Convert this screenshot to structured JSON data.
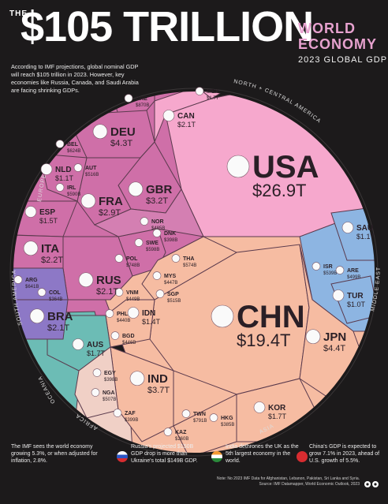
{
  "header": {
    "the": "THE",
    "title": "$105 TRILLION",
    "right_title_1": "WORLD",
    "right_title_2": "ECONOMY",
    "subtitle": "2023 GLOBAL GDP",
    "intro": "According to IMF projections, global nominal GDP will reach $105 trillion in 2023. However, key economies like Russia, Canada, and Saudi Arabia are facing shrinking GDPs."
  },
  "colors": {
    "background": "#1c1a1b",
    "north_america": "#f6a8cd",
    "asia": "#f6bca2",
    "europe": "#cf6fa8",
    "middle_east": "#8db5e2",
    "south_america": "#8d78c6",
    "oceania": "#6cbcb5",
    "africa": "#f0d0c6",
    "title_accent": "#e7a2cf"
  },
  "chart_data": {
    "type": "voronoi treemap",
    "unit": "USD",
    "regions": [
      {
        "name": "NORTH + CENTRAL AMERICA",
        "countries": [
          {
            "code": "USA",
            "value": "$26.9T"
          },
          {
            "code": "CAN",
            "value": "$2.1T"
          },
          {
            "code": "MEX",
            "value": "$1.7T"
          }
        ]
      },
      {
        "name": "ASIA",
        "countries": [
          {
            "code": "CHN",
            "value": "$19.4T"
          },
          {
            "code": "JPN",
            "value": "$4.4T"
          },
          {
            "code": "IND",
            "value": "$3.7T"
          },
          {
            "code": "KOR",
            "value": "$1.7T"
          },
          {
            "code": "IDN",
            "value": "$1.4T"
          },
          {
            "code": "TWN",
            "value": "$791B"
          },
          {
            "code": "THA",
            "value": "$574B"
          },
          {
            "code": "SGP",
            "value": "$515B"
          },
          {
            "code": "PHL",
            "value": "$440B"
          },
          {
            "code": "VNM",
            "value": "$449B"
          },
          {
            "code": "MYS",
            "value": "$447B"
          },
          {
            "code": "BGD",
            "value": "$446B"
          },
          {
            "code": "HKG",
            "value": "$385B"
          },
          {
            "code": "KAZ",
            "value": "$260B"
          }
        ]
      },
      {
        "name": "EUROPE",
        "countries": [
          {
            "code": "DEU",
            "value": "$4.3T"
          },
          {
            "code": "GBR",
            "value": "$3.2T"
          },
          {
            "code": "FRA",
            "value": "$2.9T"
          },
          {
            "code": "ITA",
            "value": "$2.2T"
          },
          {
            "code": "RUS",
            "value": "$2.1T"
          },
          {
            "code": "ESP",
            "value": "$1.5T"
          },
          {
            "code": "NLD",
            "value": "$1.1T"
          },
          {
            "code": "CHE",
            "value": "$870B"
          },
          {
            "code": "POL",
            "value": "$748B"
          },
          {
            "code": "BEL",
            "value": "$624B"
          },
          {
            "code": "SWE",
            "value": "$598B"
          },
          {
            "code": "IRL",
            "value": "$590B"
          },
          {
            "code": "AUT",
            "value": "$516B"
          },
          {
            "code": "NOR",
            "value": "$485B"
          },
          {
            "code": "DNK",
            "value": "$398B"
          }
        ]
      },
      {
        "name": "MIDDLE EAST",
        "countries": [
          {
            "code": "SAU",
            "value": "$1.1T"
          },
          {
            "code": "TUR",
            "value": "$1.0T"
          },
          {
            "code": "ISR",
            "value": "$539B"
          },
          {
            "code": "ARE",
            "value": "$499B"
          }
        ]
      },
      {
        "name": "SOUTH AMERICA",
        "countries": [
          {
            "code": "BRA",
            "value": "$2.1T"
          },
          {
            "code": "ARG",
            "value": "$641B"
          },
          {
            "code": "COL",
            "value": "$364B"
          }
        ]
      },
      {
        "name": "OCEANIA",
        "countries": [
          {
            "code": "AUS",
            "value": "$1.7T"
          }
        ]
      },
      {
        "name": "AFRICA",
        "countries": [
          {
            "code": "NGA",
            "value": "$507B"
          },
          {
            "code": "EGY",
            "value": "$398B"
          },
          {
            "code": "ZAF",
            "value": "$399B"
          }
        ]
      }
    ]
  },
  "footer": {
    "left": "The IMF sees the world economy growing 5.3%, or when adjusted for inflation, 2.8%.",
    "russia": "Russia's projected $150B GDP drop is more than Ukraine's total $149B GDP.",
    "india": "India dethrones the UK as the 5th largest economy in the world.",
    "china": "China's GDP is expected to grow 7.1% in 2023, ahead of U.S. growth of 5.5%.",
    "note": "Note: No 2023 IMF Data for Afghanistan, Lebanon, Pakistan, Sri Lanka and Syria.",
    "source": "Source: IMF Datamapper, World Economic Outlook, 2023"
  }
}
